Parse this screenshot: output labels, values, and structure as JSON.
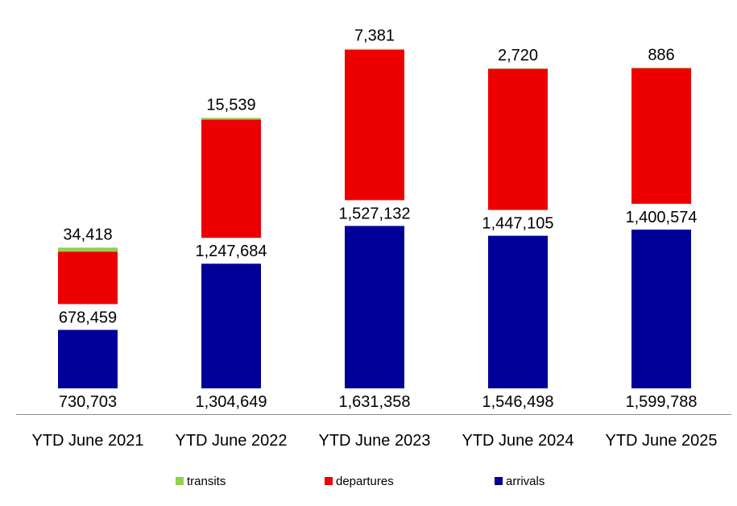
{
  "chart_data": {
    "type": "bar",
    "stacked": true,
    "title": "",
    "xlabel": "",
    "ylabel": "",
    "ylim": [
      0,
      3450000
    ],
    "grid": false,
    "legend_position": "bottom",
    "categories": [
      "YTD June 2021",
      "YTD June 2022",
      "YTD June 2023",
      "YTD June 2024",
      "YTD June 2025"
    ],
    "series": [
      {
        "name": "arrivals",
        "key": "arrivals",
        "color": "#000099",
        "values": [
          730703,
          1304649,
          1631358,
          1546498,
          1599788
        ],
        "labels": [
          "730,703",
          "1,304,649",
          "1,631,358",
          "1,546,498",
          "1,599,788"
        ]
      },
      {
        "name": "departures",
        "key": "departures",
        "color": "#ee0000",
        "values": [
          678459,
          1247684,
          1527132,
          1447105,
          1400574
        ],
        "labels": [
          "678,459",
          "1,247,684",
          "1,527,132",
          "1,447,105",
          "1,400,574"
        ]
      },
      {
        "name": "transits",
        "key": "transits",
        "color": "#92d050",
        "values": [
          34418,
          15539,
          7381,
          2720,
          886
        ],
        "labels": [
          "34,418",
          "15,539",
          "7,381",
          "2,720",
          "886"
        ]
      }
    ],
    "legend": [
      {
        "name": "transits",
        "color": "#92d050"
      },
      {
        "name": "departures",
        "color": "#ee0000"
      },
      {
        "name": "arrivals",
        "color": "#000099"
      }
    ]
  }
}
